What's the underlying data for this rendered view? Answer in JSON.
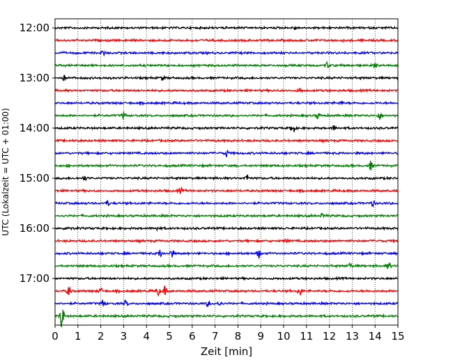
{
  "chart_data": {
    "type": "line",
    "title": "",
    "xlabel": "Zeit  [min]",
    "ylabel": "UTC (Lokalzeit = UTC + 01:00)",
    "xlim": [
      0,
      15
    ],
    "x_ticks": [
      "0",
      "1",
      "2",
      "3",
      "4",
      "5",
      "6",
      "7",
      "8",
      "9",
      "10",
      "11",
      "12",
      "13",
      "14",
      "15"
    ],
    "y_ticks": [
      "12:00",
      "13:00",
      "14:00",
      "15:00",
      "16:00",
      "17:00"
    ],
    "grid": "vertical dotted",
    "trace_interval_min": 15,
    "start_time": "12:00",
    "end_time": "17:45",
    "color_cycle": [
      "#000000",
      "#ff0000",
      "#0000ff",
      "#008000"
    ],
    "series": [
      {
        "time": "12:00",
        "color": "#000000",
        "events": [
          [
            10.5,
            0.3
          ]
        ]
      },
      {
        "time": "12:15",
        "color": "#ff0000",
        "events": []
      },
      {
        "time": "12:30",
        "color": "#0000ff",
        "events": [
          [
            2.1,
            0.35
          ]
        ]
      },
      {
        "time": "12:45",
        "color": "#008000",
        "events": [
          [
            11.9,
            0.5
          ],
          [
            14.0,
            0.45
          ]
        ]
      },
      {
        "time": "13:00",
        "color": "#000000",
        "events": [
          [
            0.4,
            0.4
          ],
          [
            4.7,
            0.3
          ]
        ]
      },
      {
        "time": "13:15",
        "color": "#ff0000",
        "events": [
          [
            10.7,
            0.4
          ]
        ]
      },
      {
        "time": "13:30",
        "color": "#0000ff",
        "events": [
          [
            12.5,
            0.3
          ]
        ]
      },
      {
        "time": "13:45",
        "color": "#008000",
        "events": [
          [
            3.0,
            0.55
          ],
          [
            11.5,
            0.4
          ],
          [
            14.2,
            0.6
          ]
        ]
      },
      {
        "time": "14:00",
        "color": "#000000",
        "events": [
          [
            10.4,
            1.0
          ],
          [
            12.2,
            0.4
          ]
        ]
      },
      {
        "time": "14:15",
        "color": "#ff0000",
        "events": []
      },
      {
        "time": "14:30",
        "color": "#0000ff",
        "events": [
          [
            7.5,
            0.55
          ]
        ]
      },
      {
        "time": "14:45",
        "color": "#008000",
        "events": [
          [
            13.8,
            0.7
          ]
        ]
      },
      {
        "time": "15:00",
        "color": "#000000",
        "events": [
          [
            1.3,
            0.4
          ],
          [
            8.4,
            0.55
          ]
        ]
      },
      {
        "time": "15:15",
        "color": "#ff0000",
        "events": [
          [
            5.5,
            0.4
          ]
        ]
      },
      {
        "time": "15:30",
        "color": "#0000ff",
        "events": [
          [
            2.3,
            0.4
          ],
          [
            13.9,
            0.4
          ]
        ]
      },
      {
        "time": "15:45",
        "color": "#008000",
        "events": [
          [
            11.7,
            0.3
          ]
        ]
      },
      {
        "time": "16:00",
        "color": "#000000",
        "events": [
          [
            0.6,
            0.4
          ],
          [
            4.5,
            0.3
          ]
        ]
      },
      {
        "time": "16:15",
        "color": "#ff0000",
        "events": [
          [
            10.1,
            0.3
          ]
        ]
      },
      {
        "time": "16:30",
        "color": "#0000ff",
        "events": [
          [
            4.6,
            0.55
          ],
          [
            5.1,
            0.6
          ],
          [
            8.9,
            0.7
          ]
        ]
      },
      {
        "time": "16:45",
        "color": "#008000",
        "events": [
          [
            12.9,
            0.45
          ],
          [
            14.6,
            0.45
          ]
        ]
      },
      {
        "time": "17:00",
        "color": "#000000",
        "events": []
      },
      {
        "time": "17:15",
        "color": "#ff0000",
        "events": [
          [
            0.6,
            0.7
          ],
          [
            2.0,
            0.4
          ],
          [
            4.5,
            0.7
          ],
          [
            4.8,
            0.6
          ],
          [
            10.7,
            0.7
          ]
        ]
      },
      {
        "time": "17:30",
        "color": "#0000ff",
        "events": [
          [
            2.1,
            0.6
          ],
          [
            3.1,
            0.5
          ],
          [
            6.7,
            0.4
          ],
          [
            7.2,
            0.4
          ]
        ]
      },
      {
        "time": "17:45",
        "color": "#008000",
        "events": [
          [
            0.3,
            2.0
          ]
        ]
      }
    ]
  }
}
